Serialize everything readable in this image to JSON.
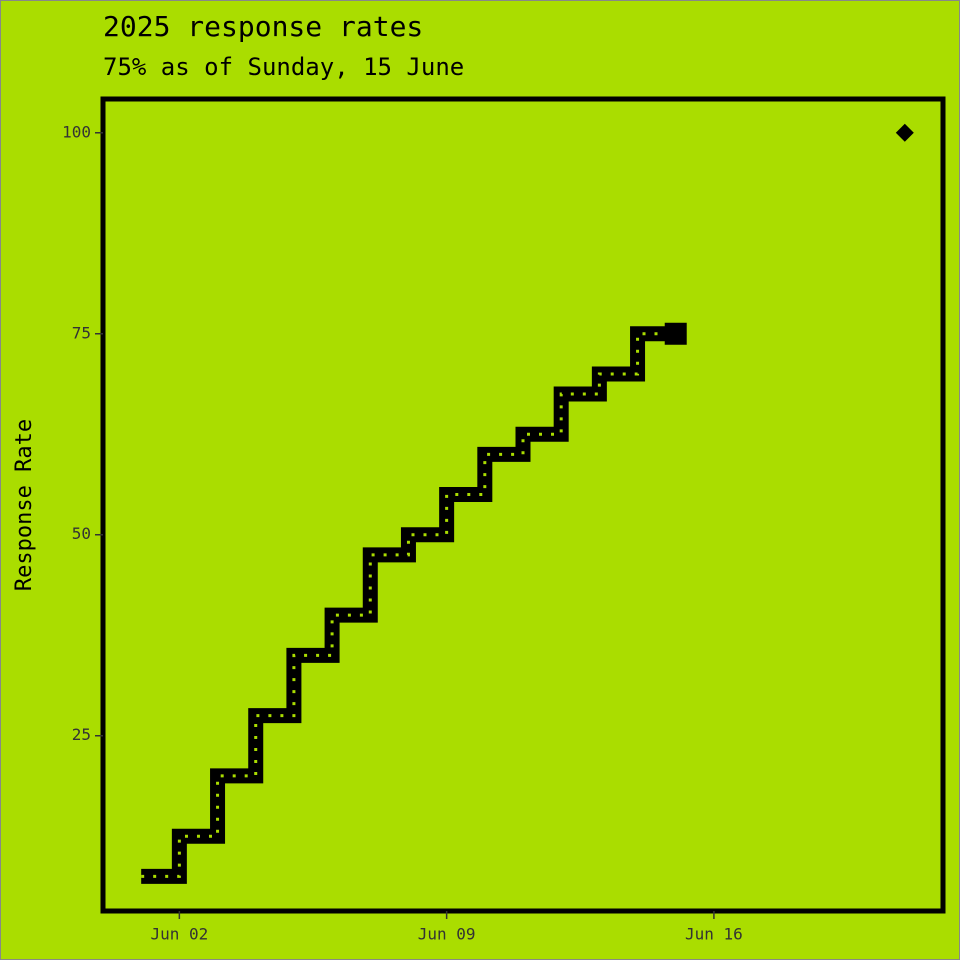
{
  "chart_data": {
    "type": "step",
    "title": "2025 response rates",
    "subtitle": "75% as of Sunday, 15 June",
    "y_label": "Response Rate",
    "x": [
      "Jun 01",
      "Jun 02",
      "Jun 03",
      "Jun 04",
      "Jun 05",
      "Jun 06",
      "Jun 07",
      "Jun 08",
      "Jun 09",
      "Jun 10",
      "Jun 11",
      "Jun 12",
      "Jun 13",
      "Jun 14",
      "Jun 15"
    ],
    "values": [
      7.5,
      12.5,
      20,
      27.5,
      35,
      40,
      47.5,
      50,
      55,
      60,
      62.5,
      67.5,
      70,
      75,
      75
    ],
    "color": "#000000",
    "target": {
      "x": "Jun 21",
      "value": 100
    },
    "xlim": [
      "May 31",
      "Jun 22"
    ],
    "xticks": [
      "Jun 02",
      "Jun 09",
      "Jun 16"
    ],
    "ylim": [
      3.2,
      104.2
    ],
    "yticks": [
      25,
      50,
      75,
      100
    ],
    "grid": false
  }
}
